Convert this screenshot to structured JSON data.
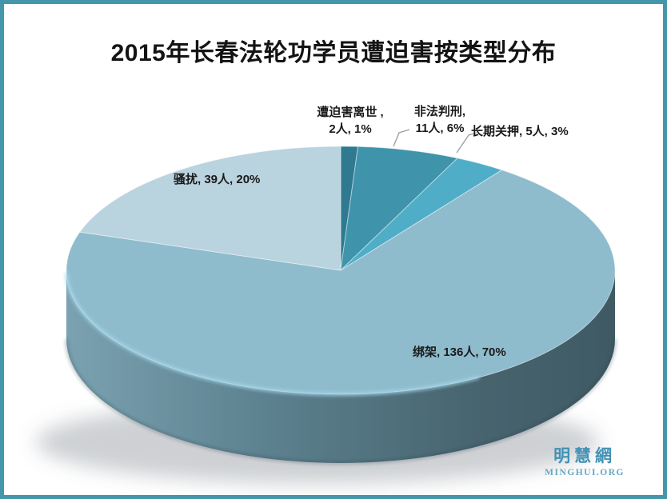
{
  "frame": {
    "border_color": "#4496aa",
    "background_color": "#ffffff"
  },
  "title": "2015年长春法轮功学员遭迫害按类型分布",
  "chart_data": {
    "type": "pie",
    "title": "2015年长春法轮功学员遭迫害按类型分布",
    "unit": "人",
    "effect": "3d",
    "start_angle_deg": 0,
    "direction": "clockwise",
    "legend_position": "none",
    "slices": [
      {
        "label": "遭迫害离世",
        "count": 2,
        "percent": 1,
        "color": "#2f7a90"
      },
      {
        "label": "非法判刑",
        "count": 11,
        "percent": 6,
        "color": "#3f94ac"
      },
      {
        "label": "长期关押",
        "count": 5,
        "percent": 3,
        "color": "#4fadc8"
      },
      {
        "label": "绑架",
        "count": 136,
        "percent": 70,
        "color": "#8fbccd"
      },
      {
        "label": "骚扰",
        "count": 39,
        "percent": 20,
        "color": "#b9d3df"
      }
    ],
    "side_gradient": [
      "#7ba2b1",
      "#5d8290",
      "#47646f",
      "#3f5a64"
    ],
    "rim_highlight_color": "#a6d9ec",
    "leader_line_color": "#a0a0a0",
    "labels": {
      "death_line1": "遭迫害离世 ,",
      "death_line2": "2人, 1%",
      "sentence_line1": "非法判刑,",
      "sentence_line2": "11人, 6%",
      "detention": "长期关押, 5人, 3%",
      "harassment": "骚扰, 39人, 20%",
      "kidnapping": "绑架, 136人, 70%"
    }
  },
  "watermark": {
    "cjk": "明慧網",
    "latin": "MINGHUI.ORG",
    "cjk_color": "#4292b4",
    "latin_color": "#66a7c2"
  }
}
